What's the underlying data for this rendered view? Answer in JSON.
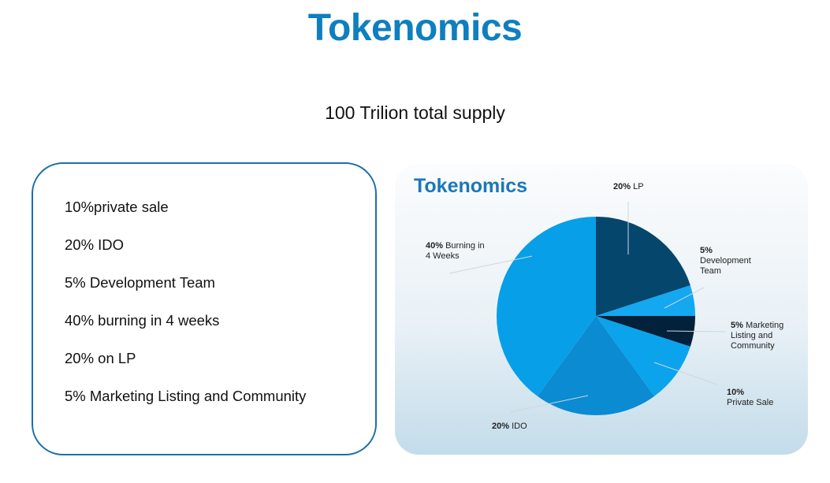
{
  "header": {
    "title": "Tokenomics",
    "subtitle": "100 Trilion total supply"
  },
  "list": {
    "items": [
      "10%private sale",
      "20% IDO",
      "5% Development Team",
      "40% burning in 4 weeks",
      "20% on LP",
      "5% Marketing Listing and Community"
    ]
  },
  "chart_data": {
    "type": "pie",
    "title": "Tokenomics",
    "categories": [
      "LP",
      "Development Team",
      "Marketing Listing and Community",
      "Private Sale",
      "IDO",
      "Burning in 4 Weeks"
    ],
    "values": [
      20,
      5,
      5,
      10,
      20,
      40
    ],
    "value_labels": [
      "20%",
      "5%",
      "5%",
      "10%",
      "20%",
      "40%"
    ],
    "colors": [
      "#05466d",
      "#14a8f0",
      "#03213a",
      "#0ba3ec",
      "#0a8bd2",
      "#079fe8"
    ]
  }
}
